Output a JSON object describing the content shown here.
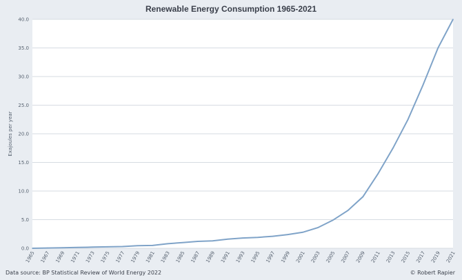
{
  "chart_data": {
    "type": "line",
    "title": "Renewable Energy Consumption 1965-2021",
    "ylabel": "Exajoules per year",
    "xlabel": "",
    "ylim": [
      0,
      40
    ],
    "yticks": [
      "0.0",
      "5.0",
      "10.0",
      "15.0",
      "20.0",
      "25.0",
      "30.0",
      "35.0",
      "40.0"
    ],
    "xticks": [
      "1965",
      "1967",
      "1969",
      "1971",
      "1973",
      "1975",
      "1977",
      "1979",
      "1981",
      "1983",
      "1985",
      "1987",
      "1989",
      "1991",
      "1993",
      "1995",
      "1997",
      "1999",
      "2001",
      "2003",
      "2005",
      "2007",
      "2009",
      "2011",
      "2013",
      "2015",
      "2017",
      "2019",
      "2021"
    ],
    "grid": true,
    "series": [
      {
        "color": "#7fa3c8",
        "x": [
          1965,
          1967,
          1969,
          1971,
          1973,
          1975,
          1977,
          1979,
          1981,
          1983,
          1985,
          1987,
          1989,
          1991,
          1993,
          1995,
          1997,
          1999,
          2001,
          2003,
          2005,
          2007,
          2009,
          2011,
          2013,
          2015,
          2017,
          2019,
          2021
        ],
        "values": [
          0.0,
          0.05,
          0.1,
          0.15,
          0.2,
          0.25,
          0.3,
          0.45,
          0.5,
          0.8,
          1.0,
          1.2,
          1.3,
          1.6,
          1.8,
          1.9,
          2.1,
          2.4,
          2.8,
          3.6,
          4.9,
          6.6,
          9.0,
          13.0,
          17.5,
          22.5,
          28.5,
          35.0,
          40.0
        ]
      }
    ],
    "source": "Data source: BP Statistical Review of World Energy 2022",
    "credit": "© Robert Rapier"
  }
}
